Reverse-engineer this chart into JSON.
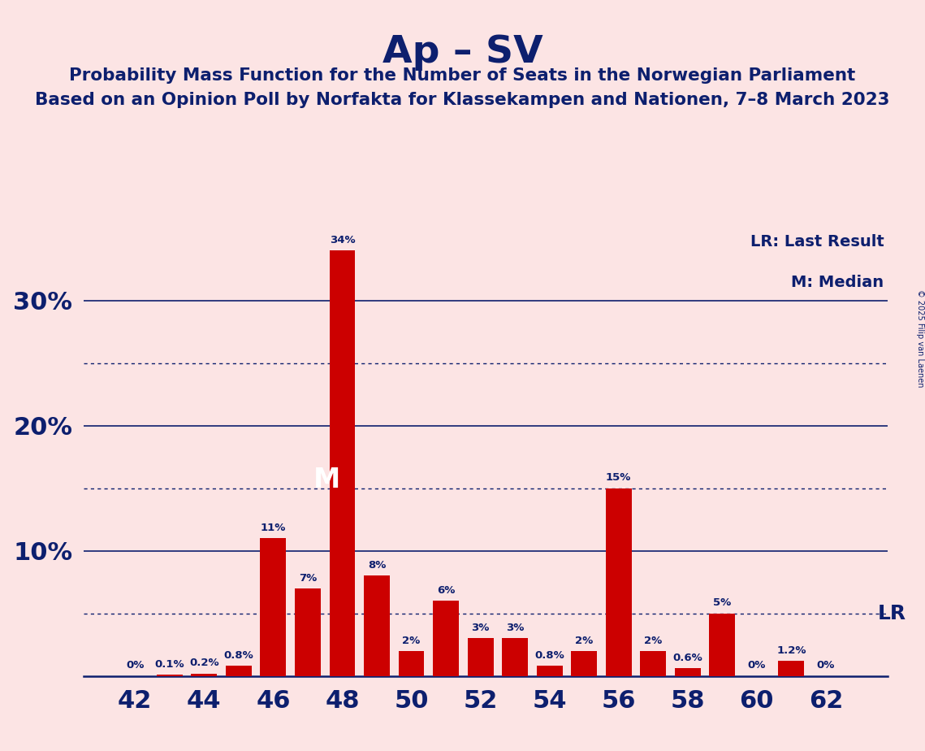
{
  "title": "Ap – SV",
  "subtitle1": "Probability Mass Function for the Number of Seats in the Norwegian Parliament",
  "subtitle2": "Based on an Opinion Poll by Norfakta for Klassekampen and Nationen, 7–8 March 2023",
  "copyright": "© 2025 Filip van Laenen",
  "legend_lr": "LR: Last Result",
  "legend_m": "M: Median",
  "background_color": "#fce4e4",
  "bar_color": "#cc0000",
  "text_color": "#0d1f6e",
  "seats": [
    42,
    43,
    44,
    45,
    46,
    47,
    48,
    49,
    50,
    51,
    52,
    53,
    54,
    55,
    56,
    57,
    58,
    59,
    60,
    61,
    62
  ],
  "probs": [
    0.0,
    0.1,
    0.2,
    0.8,
    11.0,
    7.0,
    34.0,
    8.0,
    2.0,
    6.0,
    3.0,
    3.0,
    0.8,
    2.0,
    15.0,
    2.0,
    0.6,
    5.0,
    0.0,
    1.2,
    0.0
  ],
  "labels": [
    "0%",
    "0.1%",
    "0.2%",
    "0.8%",
    "11%",
    "7%",
    "34%",
    "8%",
    "2%",
    "6%",
    "3%",
    "3%",
    "0.8%",
    "2%",
    "15%",
    "2%",
    "0.6%",
    "5%",
    "0%",
    "1.2%",
    "0%"
  ],
  "median_seat": 48,
  "lr_value": 5.0,
  "ylim": [
    0,
    36
  ],
  "solid_yticks": [
    10,
    20,
    30
  ],
  "dotted_yticks": [
    5,
    15,
    25
  ],
  "lr_dotted_y": 5.0,
  "bar_width": 0.75,
  "xlim_left": 40.5,
  "xlim_right": 63.8
}
